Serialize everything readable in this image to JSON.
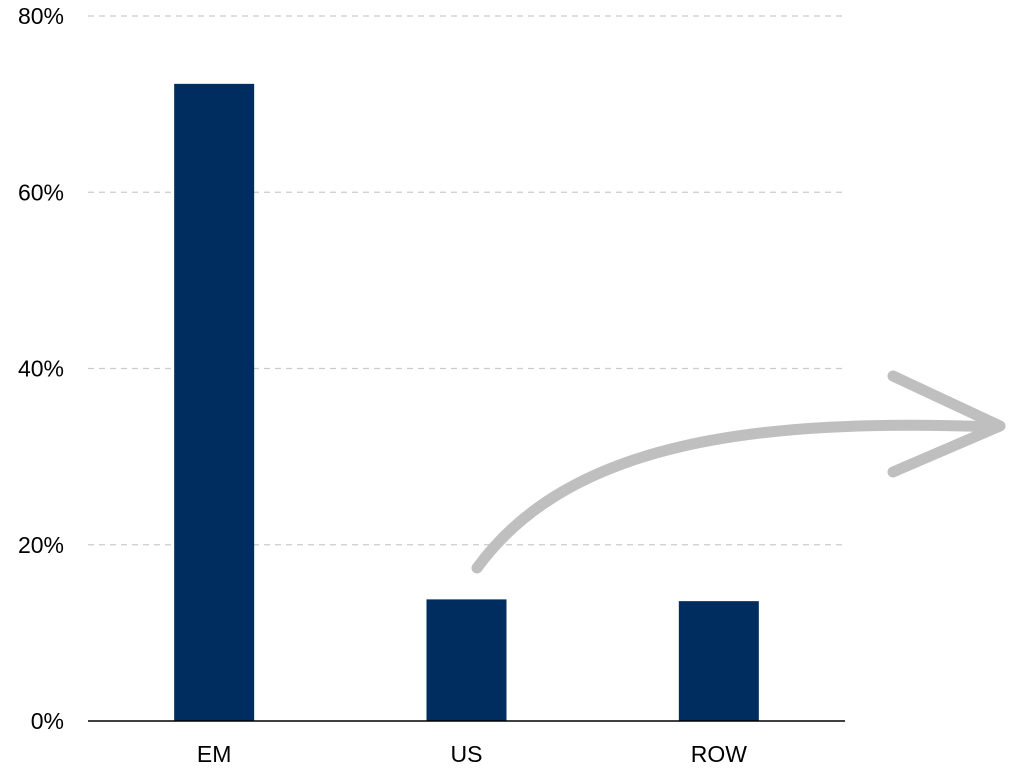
{
  "chart_data": {
    "type": "bar",
    "categories": [
      "EM",
      "US",
      "ROW"
    ],
    "values": [
      72.3,
      13.8,
      13.6
    ],
    "yticks": [
      "0%",
      "20%",
      "40%",
      "60%",
      "80%"
    ],
    "ylim": [
      0,
      80
    ],
    "grid": true,
    "title": "",
    "xlabel": "",
    "ylabel": "",
    "colors": {
      "bar": "#002d5f",
      "grid": "#cccccc",
      "axis": "#000000",
      "text": "#000000",
      "arrow": "#bfbfbf"
    },
    "annotation": {
      "type": "curved-arrow",
      "from_category": "US",
      "direction": "right"
    }
  }
}
